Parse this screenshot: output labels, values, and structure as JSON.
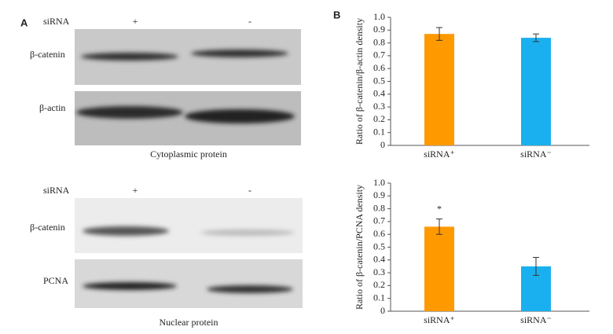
{
  "panel_a": {
    "label": "A",
    "top": {
      "siRNA_label": "siRNA",
      "plus": "+",
      "minus": "-",
      "row1": "β-catenin",
      "row2": "β-actin",
      "caption": "Cytoplasmic protein"
    },
    "bottom": {
      "siRNA_label": "siRNA",
      "plus": "+",
      "minus": "-",
      "row1": "β-catenin",
      "row2": "PCNA",
      "caption": "Nuclear protein"
    }
  },
  "panel_b": {
    "label": "B"
  },
  "chart_data": [
    {
      "type": "bar",
      "ylabel": "Ratio of β-catenin/β-actin density",
      "categories": [
        "siRNA⁺",
        "siRNA⁻"
      ],
      "values": [
        0.87,
        0.84
      ],
      "errors": [
        0.05,
        0.03
      ],
      "colors": [
        "#ff9900",
        "#1ab0ef"
      ],
      "ylim": [
        0,
        1
      ],
      "yticks": [
        0,
        0.1,
        0.2,
        0.3,
        0.4,
        0.5,
        0.6,
        0.7,
        0.8,
        0.9,
        {
          "value": 1,
          "label": "1.0"
        }
      ]
    },
    {
      "type": "bar",
      "ylabel": "Ratio of β-catenin/PCNA density",
      "categories": [
        "siRNA⁺",
        "siRNA⁻"
      ],
      "values": [
        0.66,
        0.35
      ],
      "errors": [
        0.06,
        0.07
      ],
      "annotations": [
        "*",
        null
      ],
      "colors": [
        "#ff9900",
        "#1ab0ef"
      ],
      "ylim": [
        0,
        1
      ],
      "yticks": [
        0,
        0.1,
        0.2,
        0.3,
        0.4,
        0.5,
        0.6,
        0.7,
        0.8,
        0.9,
        {
          "value": 1,
          "label": "1.0"
        }
      ]
    }
  ]
}
